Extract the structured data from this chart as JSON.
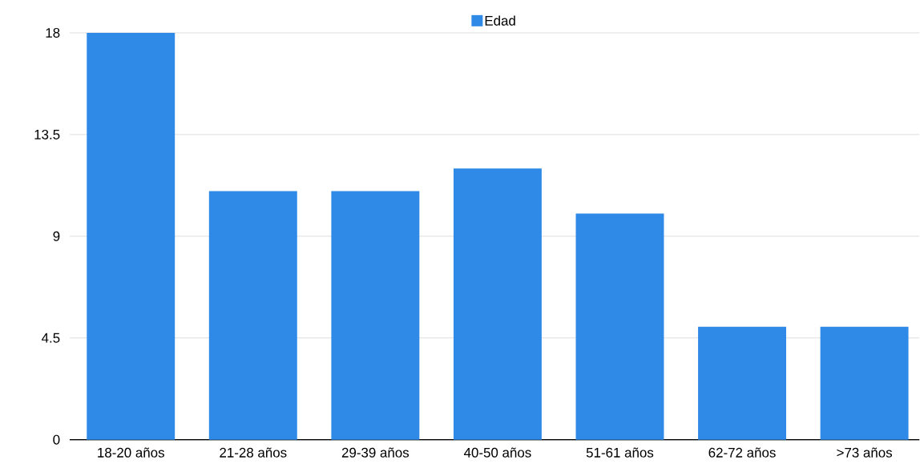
{
  "chart_data": {
    "type": "bar",
    "categories": [
      "18-20 años",
      "21-28 años",
      "29-39 años",
      "40-50 años",
      "51-61 años",
      "62-72 años",
      ">73 años"
    ],
    "series": [
      {
        "name": "Edad",
        "color": "#2e8ae6",
        "values": [
          18,
          11,
          11,
          12,
          10,
          5,
          5
        ]
      }
    ],
    "ylim": [
      0,
      18
    ],
    "yticks": [
      0,
      4.5,
      9,
      13.5,
      18
    ],
    "grid": "y",
    "legend": "top"
  }
}
